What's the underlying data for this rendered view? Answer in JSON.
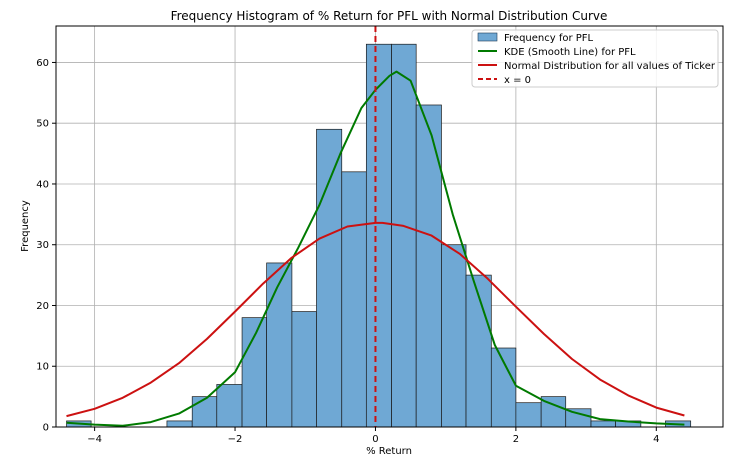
{
  "chart_data": {
    "type": "bar",
    "title": "Frequency Histogram of % Return for PFL with Normal Distribution Curve",
    "xlabel": "% Return",
    "ylabel": "Frequency",
    "xlim": [
      -4.55,
      4.95
    ],
    "ylim": [
      0,
      66
    ],
    "xticks": [
      -4,
      -2,
      0,
      2,
      4
    ],
    "yticks": [
      0,
      10,
      20,
      30,
      40,
      50,
      60
    ],
    "grid": true,
    "legend_position": "top-right",
    "histogram": {
      "name": "Frequency for PFL",
      "color": "#6fa8d4",
      "bins": [
        {
          "x0": -4.4,
          "x1": -4.05,
          "count": 1
        },
        {
          "x0": -2.97,
          "x1": -2.61,
          "count": 1
        },
        {
          "x0": -2.61,
          "x1": -2.26,
          "count": 5
        },
        {
          "x0": -2.26,
          "x1": -1.9,
          "count": 7
        },
        {
          "x0": -1.9,
          "x1": -1.55,
          "count": 18
        },
        {
          "x0": -1.55,
          "x1": -1.19,
          "count": 27
        },
        {
          "x0": -1.19,
          "x1": -0.84,
          "count": 19
        },
        {
          "x0": -0.84,
          "x1": -0.48,
          "count": 49
        },
        {
          "x0": -0.48,
          "x1": -0.13,
          "count": 42
        },
        {
          "x0": -0.13,
          "x1": 0.23,
          "count": 63
        },
        {
          "x0": 0.23,
          "x1": 0.58,
          "count": 63
        },
        {
          "x0": 0.58,
          "x1": 0.94,
          "count": 53
        },
        {
          "x0": 0.94,
          "x1": 1.29,
          "count": 30
        },
        {
          "x0": 1.29,
          "x1": 1.65,
          "count": 25
        },
        {
          "x0": 1.65,
          "x1": 2.0,
          "count": 13
        },
        {
          "x0": 2.0,
          "x1": 2.36,
          "count": 4
        },
        {
          "x0": 2.36,
          "x1": 2.71,
          "count": 5
        },
        {
          "x0": 2.71,
          "x1": 3.07,
          "count": 3
        },
        {
          "x0": 3.07,
          "x1": 3.42,
          "count": 1
        },
        {
          "x0": 3.42,
          "x1": 3.78,
          "count": 1
        },
        {
          "x0": 4.13,
          "x1": 4.49,
          "count": 1
        }
      ]
    },
    "series": [
      {
        "name": "KDE (Smooth Line) for PFL",
        "type": "line",
        "color": "#007a00",
        "x": [
          -4.4,
          -4.0,
          -3.6,
          -3.2,
          -2.8,
          -2.4,
          -2.0,
          -1.7,
          -1.4,
          -1.1,
          -0.8,
          -0.5,
          -0.2,
          0.0,
          0.2,
          0.3,
          0.5,
          0.8,
          1.1,
          1.4,
          1.7,
          2.0,
          2.4,
          2.8,
          3.2,
          3.6,
          4.0,
          4.4
        ],
        "y": [
          0.7,
          0.4,
          0.2,
          0.8,
          2.2,
          4.8,
          9.0,
          15.5,
          23.0,
          29.5,
          36.5,
          45.0,
          52.5,
          55.5,
          57.8,
          58.5,
          57.0,
          48.0,
          35.0,
          24.0,
          13.5,
          6.8,
          4.3,
          2.5,
          1.3,
          0.9,
          0.6,
          0.4
        ]
      },
      {
        "name": "Normal Distribution for all values of Ticker",
        "type": "line",
        "color": "#cc1111",
        "x": [
          -4.4,
          -4.0,
          -3.6,
          -3.2,
          -2.8,
          -2.4,
          -2.0,
          -1.6,
          -1.2,
          -0.8,
          -0.4,
          0.0,
          0.1,
          0.4,
          0.8,
          1.2,
          1.6,
          2.0,
          2.4,
          2.8,
          3.2,
          3.6,
          4.0,
          4.4
        ],
        "y": [
          1.8,
          3.0,
          4.8,
          7.3,
          10.5,
          14.5,
          19.0,
          23.6,
          27.8,
          31.0,
          33.0,
          33.6,
          33.6,
          33.1,
          31.5,
          28.5,
          24.4,
          19.8,
          15.3,
          11.2,
          7.8,
          5.2,
          3.2,
          1.9
        ]
      },
      {
        "name": "x = 0",
        "type": "vline",
        "color": "#cc1111",
        "x": 0
      }
    ]
  }
}
